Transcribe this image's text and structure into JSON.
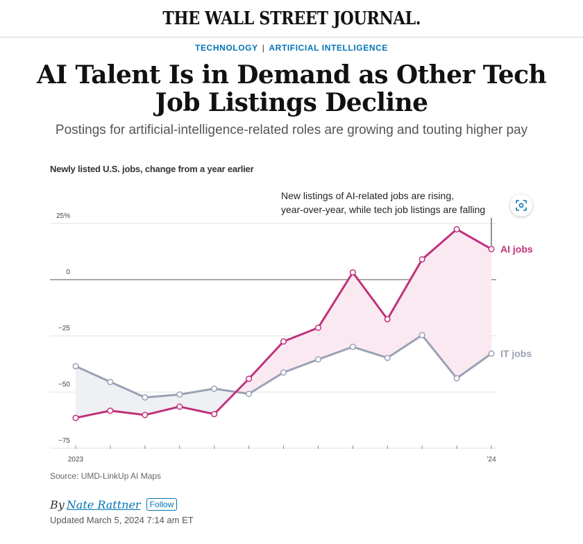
{
  "masthead": {
    "logo_text": "THE WALL STREET JOURNAL."
  },
  "kicker": {
    "section": "TECHNOLOGY",
    "separator": "|",
    "topic": "ARTIFICIAL INTELLIGENCE"
  },
  "headline": "AI Talent Is in Demand as Other Tech Job Listings Decline",
  "dek": "Postings for artificial-intelligence-related roles are growing and touting higher pay",
  "chart_subtitle": "Newly listed U.S. jobs, change from a year earlier",
  "source": "Source: UMD-LinkUp AI Maps",
  "byline": {
    "prefix": "By",
    "author": "Nate Rattner",
    "follow_label": "Follow"
  },
  "updated": "Updated March 5, 2024 7:14 am ET",
  "colors": {
    "ai": "#c0317b",
    "it": "#9aa1b3",
    "link": "#0274b6"
  },
  "scan_icon": "scan-screenshot-icon",
  "chart_data": {
    "type": "line",
    "subtitle": "Newly listed U.S. jobs, change from a year earlier",
    "x_tick_labels": [
      "2023",
      "’24"
    ],
    "y_ticks": [
      25,
      0,
      -25,
      -50,
      -75
    ],
    "y_tick_labels": [
      "25%",
      "0",
      "−25",
      "−50",
      "−75"
    ],
    "ylim": [
      -75,
      25
    ],
    "grid": true,
    "annotation": [
      "New listings of AI-related jobs are rising,",
      "year-over-year, while tech job listings are falling"
    ],
    "series": [
      {
        "name": "AI jobs",
        "color": "#c0317b",
        "values": [
          -61.5,
          -58.3,
          -60.2,
          -56.5,
          -59.8,
          -44.1,
          -27.5,
          -21.4,
          3.2,
          -17.6,
          9.0,
          22.4,
          13.6
        ]
      },
      {
        "name": "IT jobs",
        "color": "#9aa1b3",
        "values": [
          -38.5,
          -45.5,
          -52.4,
          -51.1,
          -48.5,
          -50.8,
          -41.3,
          -35.5,
          -29.9,
          -34.8,
          -24.7,
          -43.9,
          -32.9
        ]
      }
    ]
  }
}
